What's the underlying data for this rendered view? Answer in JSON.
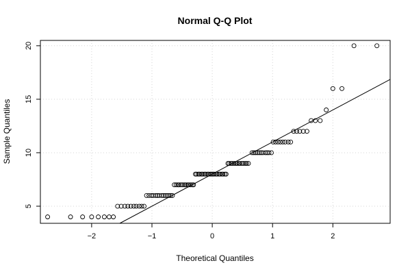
{
  "chart_data": {
    "type": "scatter",
    "title": "Normal Q-Q Plot",
    "xlabel": "Theoretical Quantiles",
    "ylabel": "Sample Quantiles",
    "xlim": [
      -2.85,
      2.95
    ],
    "ylim": [
      3.4,
      20.5
    ],
    "xticks": [
      -2,
      -1,
      0,
      1,
      2
    ],
    "yticks": [
      5,
      10,
      15,
      20
    ],
    "grid": true,
    "qqline": {
      "intercept": 8.0,
      "slope": 3.0
    },
    "points": [
      {
        "x": -2.73,
        "y": 4
      },
      {
        "x": -2.35,
        "y": 4
      },
      {
        "x": -2.15,
        "y": 4
      },
      {
        "x": -2.0,
        "y": 4
      },
      {
        "x": -1.89,
        "y": 4
      },
      {
        "x": -1.79,
        "y": 4
      },
      {
        "x": -1.71,
        "y": 4
      },
      {
        "x": -1.64,
        "y": 4
      },
      {
        "x": -1.57,
        "y": 5
      },
      {
        "x": -1.51,
        "y": 5
      },
      {
        "x": -1.45,
        "y": 5
      },
      {
        "x": -1.4,
        "y": 5
      },
      {
        "x": -1.35,
        "y": 5
      },
      {
        "x": -1.3,
        "y": 5
      },
      {
        "x": -1.26,
        "y": 5
      },
      {
        "x": -1.21,
        "y": 5
      },
      {
        "x": -1.17,
        "y": 5
      },
      {
        "x": -1.13,
        "y": 5
      },
      {
        "x": -1.09,
        "y": 6
      },
      {
        "x": -1.05,
        "y": 6
      },
      {
        "x": -1.01,
        "y": 6
      },
      {
        "x": -0.98,
        "y": 6
      },
      {
        "x": -0.94,
        "y": 6
      },
      {
        "x": -0.91,
        "y": 6
      },
      {
        "x": -0.88,
        "y": 6
      },
      {
        "x": -0.84,
        "y": 6
      },
      {
        "x": -0.81,
        "y": 6
      },
      {
        "x": -0.78,
        "y": 6
      },
      {
        "x": -0.75,
        "y": 6
      },
      {
        "x": -0.72,
        "y": 6
      },
      {
        "x": -0.69,
        "y": 6
      },
      {
        "x": -0.66,
        "y": 6
      },
      {
        "x": -0.63,
        "y": 7
      },
      {
        "x": -0.6,
        "y": 7
      },
      {
        "x": -0.57,
        "y": 7
      },
      {
        "x": -0.55,
        "y": 7
      },
      {
        "x": -0.52,
        "y": 7
      },
      {
        "x": -0.49,
        "y": 7
      },
      {
        "x": -0.46,
        "y": 7
      },
      {
        "x": -0.44,
        "y": 7
      },
      {
        "x": -0.41,
        "y": 7
      },
      {
        "x": -0.39,
        "y": 7
      },
      {
        "x": -0.36,
        "y": 7
      },
      {
        "x": -0.33,
        "y": 7
      },
      {
        "x": -0.31,
        "y": 7
      },
      {
        "x": -0.28,
        "y": 8
      },
      {
        "x": -0.26,
        "y": 8
      },
      {
        "x": -0.23,
        "y": 8
      },
      {
        "x": -0.21,
        "y": 8
      },
      {
        "x": -0.18,
        "y": 8
      },
      {
        "x": -0.16,
        "y": 8
      },
      {
        "x": -0.13,
        "y": 8
      },
      {
        "x": -0.11,
        "y": 8
      },
      {
        "x": -0.08,
        "y": 8
      },
      {
        "x": -0.06,
        "y": 8
      },
      {
        "x": -0.03,
        "y": 8
      },
      {
        "x": -0.01,
        "y": 8
      },
      {
        "x": 0.01,
        "y": 8
      },
      {
        "x": 0.03,
        "y": 8
      },
      {
        "x": 0.06,
        "y": 8
      },
      {
        "x": 0.08,
        "y": 8
      },
      {
        "x": 0.11,
        "y": 8
      },
      {
        "x": 0.13,
        "y": 8
      },
      {
        "x": 0.16,
        "y": 8
      },
      {
        "x": 0.18,
        "y": 8
      },
      {
        "x": 0.21,
        "y": 8
      },
      {
        "x": 0.23,
        "y": 8
      },
      {
        "x": 0.26,
        "y": 9
      },
      {
        "x": 0.28,
        "y": 9
      },
      {
        "x": 0.31,
        "y": 9
      },
      {
        "x": 0.33,
        "y": 9
      },
      {
        "x": 0.36,
        "y": 9
      },
      {
        "x": 0.39,
        "y": 9
      },
      {
        "x": 0.41,
        "y": 9
      },
      {
        "x": 0.44,
        "y": 9
      },
      {
        "x": 0.46,
        "y": 9
      },
      {
        "x": 0.49,
        "y": 9
      },
      {
        "x": 0.52,
        "y": 9
      },
      {
        "x": 0.55,
        "y": 9
      },
      {
        "x": 0.57,
        "y": 9
      },
      {
        "x": 0.6,
        "y": 9
      },
      {
        "x": 0.66,
        "y": 10
      },
      {
        "x": 0.69,
        "y": 10
      },
      {
        "x": 0.72,
        "y": 10
      },
      {
        "x": 0.75,
        "y": 10
      },
      {
        "x": 0.78,
        "y": 10
      },
      {
        "x": 0.81,
        "y": 10
      },
      {
        "x": 0.84,
        "y": 10
      },
      {
        "x": 0.88,
        "y": 10
      },
      {
        "x": 0.91,
        "y": 10
      },
      {
        "x": 0.94,
        "y": 10
      },
      {
        "x": 0.98,
        "y": 10
      },
      {
        "x": 1.01,
        "y": 11
      },
      {
        "x": 1.05,
        "y": 11
      },
      {
        "x": 1.09,
        "y": 11
      },
      {
        "x": 1.13,
        "y": 11
      },
      {
        "x": 1.17,
        "y": 11
      },
      {
        "x": 1.21,
        "y": 11
      },
      {
        "x": 1.26,
        "y": 11
      },
      {
        "x": 1.3,
        "y": 11
      },
      {
        "x": 1.35,
        "y": 12
      },
      {
        "x": 1.4,
        "y": 12
      },
      {
        "x": 1.45,
        "y": 12
      },
      {
        "x": 1.51,
        "y": 12
      },
      {
        "x": 1.57,
        "y": 12
      },
      {
        "x": 1.64,
        "y": 13
      },
      {
        "x": 1.71,
        "y": 13
      },
      {
        "x": 1.79,
        "y": 13
      },
      {
        "x": 1.89,
        "y": 14
      },
      {
        "x": 2.0,
        "y": 16
      },
      {
        "x": 2.15,
        "y": 16
      },
      {
        "x": 2.35,
        "y": 20
      },
      {
        "x": 2.73,
        "y": 20
      }
    ]
  }
}
